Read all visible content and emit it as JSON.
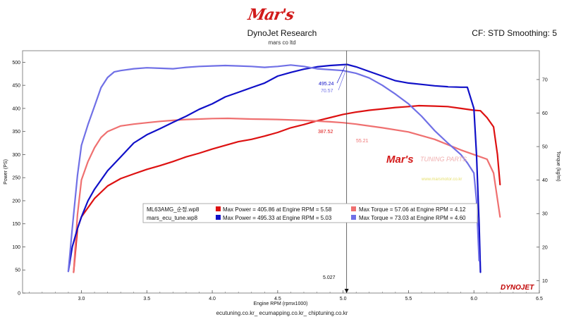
{
  "header": {
    "logo": "Mar's",
    "title": "DynoJet Research",
    "subtitle": "mars co ltd",
    "cf": "CF: STD Smoothing: 5"
  },
  "footer": "ecutuning.co.kr_ ecumapping.co.kr_ chiptuning.co.kr",
  "watermark": {
    "logo": "Mar's",
    "text": "TUNING PARTS",
    "url": "www.marsmotor.co.kr"
  },
  "brand": "DYNOJET",
  "colors": {
    "stock_power": "#dd1111",
    "stock_torque": "#ef7070",
    "tune_power": "#1010c8",
    "tune_torque": "#7070e6"
  },
  "chart_data": {
    "type": "line",
    "xlabel": "Engine RPM (rpmx1000)",
    "ylabel_left": "Power (PS)",
    "ylabel_right": "Torque (kg/m)",
    "xlim": [
      2.55,
      6.5
    ],
    "ylim_left": [
      0,
      525
    ],
    "ylim_right": [
      6.3,
      78.6
    ],
    "x_ticks": [
      "3.0",
      "3.5",
      "4.0",
      "4.5",
      "5.0",
      "5.5",
      "6.0",
      "6.5"
    ],
    "y_ticks_left": [
      "0",
      "50",
      "100",
      "150",
      "200",
      "250",
      "300",
      "350",
      "400",
      "450",
      "500"
    ],
    "y_ticks_right": [
      "10",
      "20",
      "30",
      "40",
      "50",
      "60",
      "70"
    ],
    "cursor": {
      "x": 5.027,
      "label": "5.027"
    },
    "cursor_readouts": [
      {
        "series": "tune_power",
        "value": "495.24"
      },
      {
        "series": "tune_torque",
        "value": "70.57"
      },
      {
        "series": "stock_power",
        "value": "387.52"
      },
      {
        "series": "stock_torque",
        "value": "55.21"
      }
    ],
    "legend": [
      {
        "file": "ML63AMG_순정.wp8",
        "power": "Max Power = 405.86 at Engine RPM = 5.58",
        "torque": "Max Torque = 57.06 at Engine RPM = 4.12"
      },
      {
        "file": "mars_ecu_tune.wp8",
        "power": "Max Power = 495.33 at Engine RPM = 5.03",
        "torque": "Max Torque = 73.03 at Engine RPM = 4.60"
      }
    ],
    "series": [
      {
        "key": "stock_power",
        "axis": "left",
        "x": [
          2.94,
          2.97,
          3.0,
          3.05,
          3.1,
          3.2,
          3.3,
          3.4,
          3.5,
          3.6,
          3.7,
          3.8,
          3.9,
          4.0,
          4.1,
          4.2,
          4.3,
          4.4,
          4.5,
          4.6,
          4.7,
          4.8,
          4.9,
          5.0,
          5.1,
          5.2,
          5.3,
          5.4,
          5.5,
          5.58,
          5.7,
          5.8,
          5.9,
          6.0,
          6.05,
          6.1,
          6.15,
          6.18,
          6.2
        ],
        "y": [
          45,
          140,
          165,
          185,
          205,
          232,
          248,
          258,
          268,
          276,
          285,
          295,
          303,
          312,
          320,
          328,
          333,
          340,
          348,
          358,
          365,
          373,
          380,
          387,
          392,
          396,
          399,
          402,
          404,
          405.9,
          405,
          404,
          400,
          396,
          395,
          380,
          360,
          300,
          235
        ]
      },
      {
        "key": "stock_torque",
        "axis": "left",
        "x": [
          2.94,
          2.97,
          3.0,
          3.05,
          3.1,
          3.15,
          3.2,
          3.3,
          3.4,
          3.5,
          3.6,
          3.7,
          3.8,
          3.9,
          4.0,
          4.12,
          4.3,
          4.5,
          4.7,
          4.9,
          5.0,
          5.1,
          5.3,
          5.5,
          5.7,
          5.9,
          6.0,
          6.1,
          6.15,
          6.2
        ],
        "y": [
          45,
          170,
          245,
          285,
          315,
          337,
          350,
          362,
          366,
          369,
          372,
          374,
          376,
          377,
          378,
          378.5,
          377,
          376,
          374,
          371,
          369,
          366,
          358,
          349,
          333,
          310,
          300,
          290,
          260,
          165
        ]
      },
      {
        "key": "tune_power",
        "axis": "left",
        "x": [
          2.9,
          2.93,
          2.97,
          3.0,
          3.05,
          3.1,
          3.2,
          3.3,
          3.4,
          3.5,
          3.6,
          3.7,
          3.8,
          3.9,
          4.0,
          4.1,
          4.2,
          4.3,
          4.4,
          4.5,
          4.6,
          4.7,
          4.8,
          4.9,
          5.03,
          5.1,
          5.2,
          5.3,
          5.4,
          5.5,
          5.6,
          5.7,
          5.8,
          5.9,
          5.95,
          6.0,
          6.02,
          6.04,
          6.05
        ],
        "y": [
          47,
          100,
          140,
          165,
          200,
          225,
          265,
          295,
          325,
          343,
          356,
          370,
          383,
          398,
          410,
          425,
          435,
          445,
          455,
          470,
          478,
          485,
          490,
          493,
          495.3,
          490,
          480,
          470,
          460,
          455,
          452,
          449,
          447,
          446,
          446,
          400,
          300,
          150,
          45
        ]
      },
      {
        "key": "tune_torque",
        "axis": "left",
        "x": [
          2.9,
          2.93,
          2.97,
          3.0,
          3.05,
          3.1,
          3.15,
          3.2,
          3.25,
          3.3,
          3.4,
          3.5,
          3.6,
          3.7,
          3.8,
          3.9,
          4.0,
          4.1,
          4.2,
          4.3,
          4.4,
          4.5,
          4.6,
          4.7,
          4.8,
          4.9,
          5.0,
          5.1,
          5.2,
          5.3,
          5.4,
          5.5,
          5.6,
          5.7,
          5.8,
          5.9,
          5.95,
          6.0,
          6.02,
          6.04
        ],
        "y": [
          47,
          140,
          255,
          320,
          365,
          405,
          445,
          467,
          479,
          482,
          486,
          488,
          487,
          486,
          489,
          491,
          492,
          493,
          492,
          491,
          489,
          491,
          494,
          491,
          486,
          484,
          482,
          476,
          466,
          450,
          431,
          410,
          383,
          352,
          325,
          300,
          282,
          260,
          200,
          70
        ]
      }
    ]
  }
}
